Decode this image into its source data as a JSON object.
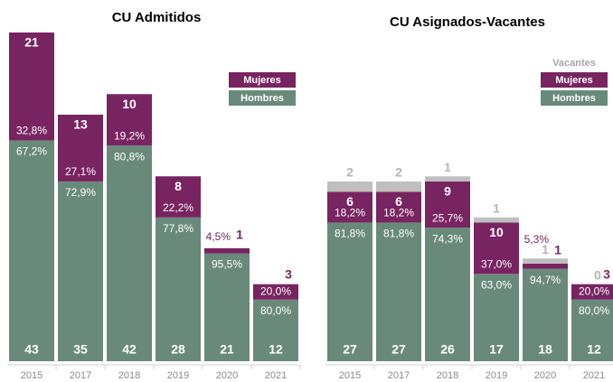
{
  "chart_data": [
    {
      "type": "stacked_bar",
      "title": "CU Admitidos",
      "categories": [
        "2015",
        "2017",
        "2018",
        "2019",
        "2020",
        "2021"
      ],
      "legend": "upper right",
      "series": [
        {
          "name": "Hombres",
          "color": "#698a7a",
          "values": [
            43,
            35,
            42,
            28,
            21,
            12
          ],
          "share_labels": [
            "67,2%",
            "72,9%",
            "80,8%",
            "77,8%",
            "95,5%",
            "80,0%"
          ]
        },
        {
          "name": "Mujeres",
          "color": "#782461",
          "values": [
            21,
            13,
            10,
            8,
            1,
            3
          ],
          "share_labels": [
            "32,8%",
            "27,1%",
            "19,2%",
            "22,2%",
            "4,5%",
            "20,0%"
          ]
        }
      ]
    },
    {
      "type": "stacked_bar",
      "title": "CU Asignados-Vacantes",
      "categories": [
        "2015",
        "2017",
        "2018",
        "2019",
        "2020",
        "2021"
      ],
      "legend": "upper right",
      "series": [
        {
          "name": "Hombres",
          "color": "#698a7a",
          "values": [
            27,
            27,
            26,
            17,
            18,
            12
          ],
          "share_labels": [
            "81,8%",
            "81,8%",
            "74,3%",
            "63,0%",
            "94,7%",
            "80,0%"
          ]
        },
        {
          "name": "Mujeres",
          "color": "#782461",
          "values": [
            6,
            6,
            9,
            10,
            1,
            3
          ],
          "share_labels": [
            "18,2%",
            "18,2%",
            "25,7%",
            "37,0%",
            "5,3%",
            "20,0%"
          ]
        },
        {
          "name": "Vacantes",
          "color": "#bfbfbf",
          "values": [
            2,
            2,
            1,
            1,
            1,
            0
          ]
        }
      ]
    }
  ]
}
